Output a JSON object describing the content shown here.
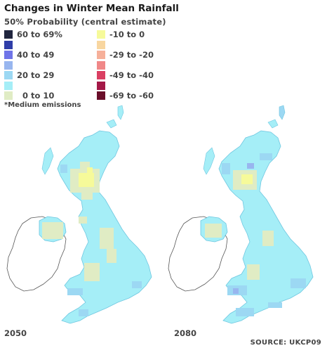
{
  "title": "Changes in Winter Mean Rainfall",
  "subtitle": "50% Probability (central estimate)",
  "legend": {
    "left": [
      {
        "label": "60 to 69%",
        "color": "#20263f"
      },
      {
        "label": "",
        "color": "#2f3ea8"
      },
      {
        "label": "40 to 49",
        "color": "#6f74e8"
      },
      {
        "label": "",
        "color": "#98b6ef"
      },
      {
        "label": "20 to 29",
        "color": "#9cd8f3"
      },
      {
        "label": "",
        "color": "#a5eef7"
      },
      {
        "label": "  0 to 10",
        "color": "#e0ecc4"
      }
    ],
    "right": [
      {
        "label": "-10 to 0",
        "color": "#f6fa9a"
      },
      {
        "label": "",
        "color": "#f8d6a0"
      },
      {
        "label": "-29 to -20",
        "color": "#f6b09a"
      },
      {
        "label": "",
        "color": "#f08888"
      },
      {
        "label": "-49 to -40",
        "color": "#da3f62"
      },
      {
        "label": "",
        "color": "#a41948"
      },
      {
        "label": "-69 to -60",
        "color": "#6a0e2a"
      }
    ]
  },
  "footnote": "*Medium emissions",
  "maps": [
    {
      "year": "2050"
    },
    {
      "year": "2080"
    }
  ],
  "source": "SOURCE: UKCP09"
}
